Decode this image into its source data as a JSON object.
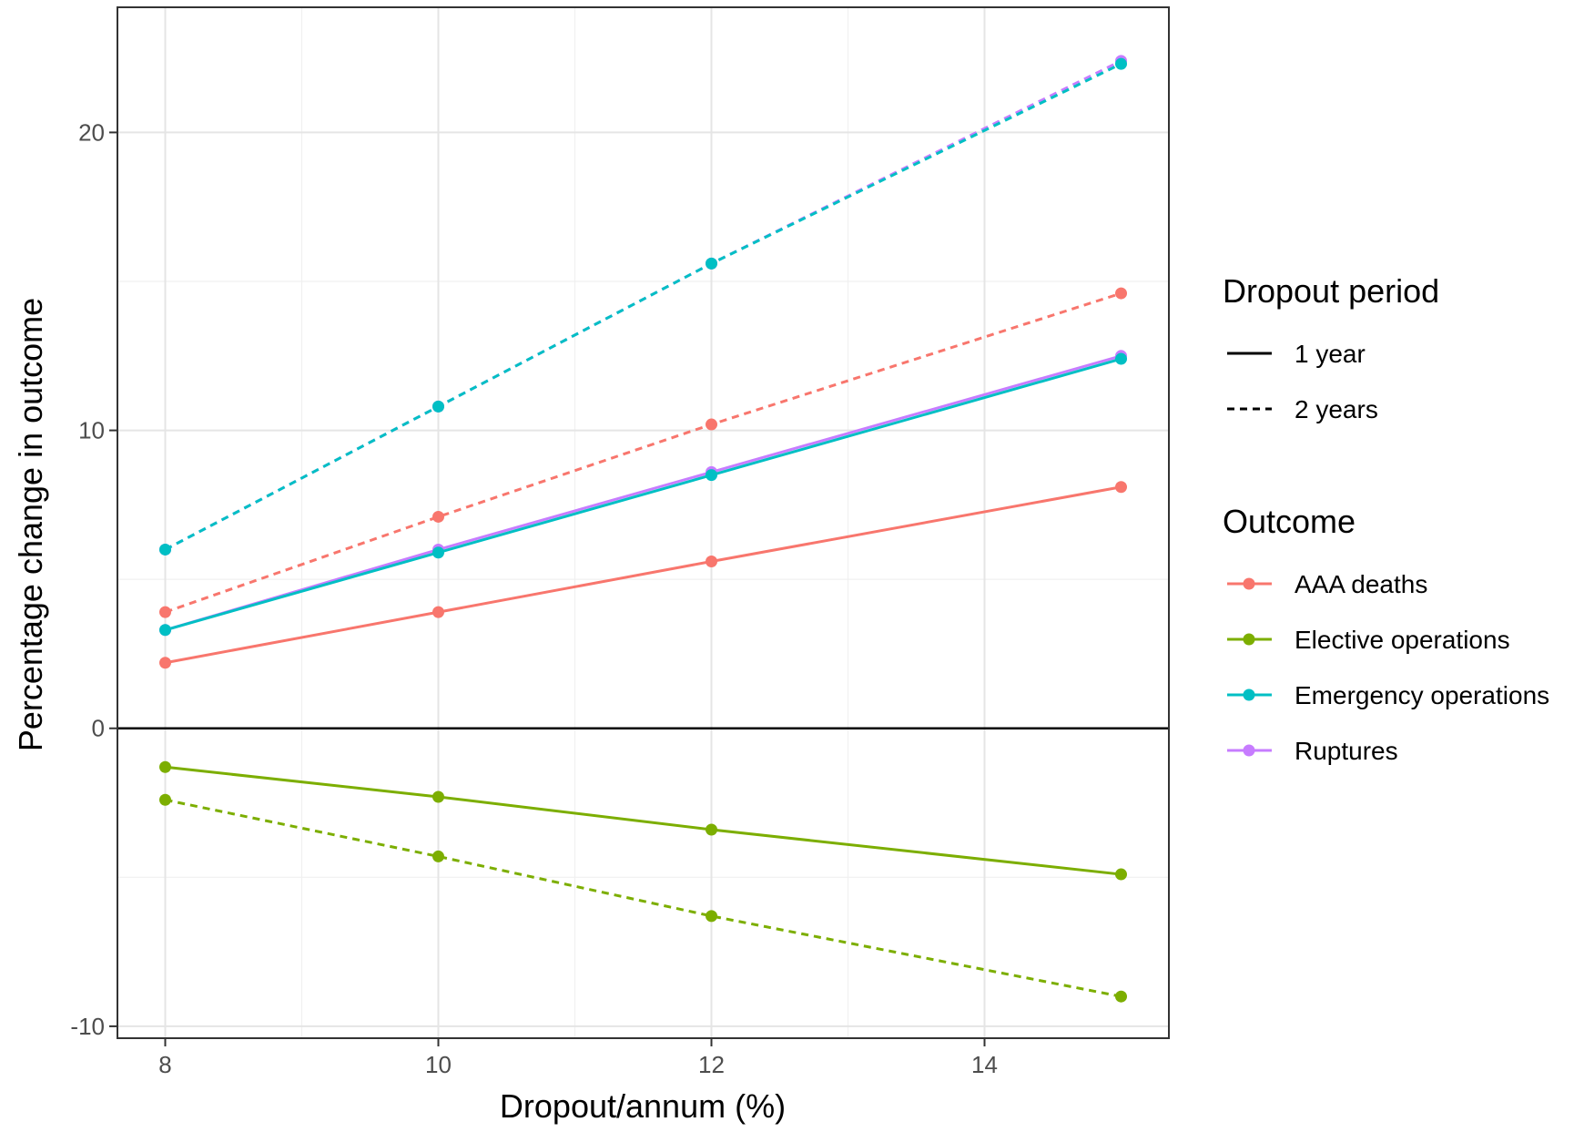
{
  "chart_data": {
    "type": "line",
    "title": "",
    "xlabel": "Dropout/annum (%)",
    "ylabel": "Percentage change in outcome",
    "x": [
      8,
      10,
      12,
      15
    ],
    "x_ticks": [
      8,
      10,
      12,
      14
    ],
    "y_ticks": [
      -10,
      0,
      10,
      20
    ],
    "xlim": [
      7.65,
      15.35
    ],
    "ylim": [
      -10.4,
      24.2
    ],
    "grid": true,
    "zero_line": true,
    "legend_position": "right",
    "legends": {
      "linetype": {
        "title": "Dropout period",
        "items": [
          {
            "label": "1 year",
            "dash": "solid"
          },
          {
            "label": "2 years",
            "dash": "dashed"
          }
        ]
      },
      "color": {
        "title": "Outcome",
        "items": [
          {
            "label": "AAA deaths",
            "color": "#F8766D"
          },
          {
            "label": "Elective operations",
            "color": "#7CAE00"
          },
          {
            "label": "Emergency operations",
            "color": "#00BFC4"
          },
          {
            "label": "Ruptures",
            "color": "#C77CFF"
          }
        ]
      }
    },
    "series": [
      {
        "outcome": "AAA deaths",
        "period": "1 year",
        "color": "#F8766D",
        "dash": "solid",
        "values": [
          2.2,
          3.9,
          5.6,
          8.1
        ]
      },
      {
        "outcome": "AAA deaths",
        "period": "2 years",
        "color": "#F8766D",
        "dash": "dashed",
        "values": [
          3.9,
          7.1,
          10.2,
          14.6
        ]
      },
      {
        "outcome": "Elective operations",
        "period": "1 year",
        "color": "#7CAE00",
        "dash": "solid",
        "values": [
          -1.3,
          -2.3,
          -3.4,
          -4.9
        ]
      },
      {
        "outcome": "Elective operations",
        "period": "2 years",
        "color": "#7CAE00",
        "dash": "dashed",
        "values": [
          -2.4,
          -4.3,
          -6.3,
          -9.0
        ]
      },
      {
        "outcome": "Ruptures",
        "period": "1 year",
        "color": "#C77CFF",
        "dash": "solid",
        "values": [
          3.3,
          6.0,
          8.6,
          12.5
        ]
      },
      {
        "outcome": "Ruptures",
        "period": "2 years",
        "color": "#C77CFF",
        "dash": "dashed",
        "values": [
          6.0,
          10.8,
          15.6,
          22.4
        ]
      },
      {
        "outcome": "Emergency operations",
        "period": "1 year",
        "color": "#00BFC4",
        "dash": "solid",
        "values": [
          3.3,
          5.9,
          8.5,
          12.4
        ]
      },
      {
        "outcome": "Emergency operations",
        "period": "2 years",
        "color": "#00BFC4",
        "dash": "dashed",
        "values": [
          6.0,
          10.8,
          15.6,
          22.3
        ]
      }
    ]
  }
}
